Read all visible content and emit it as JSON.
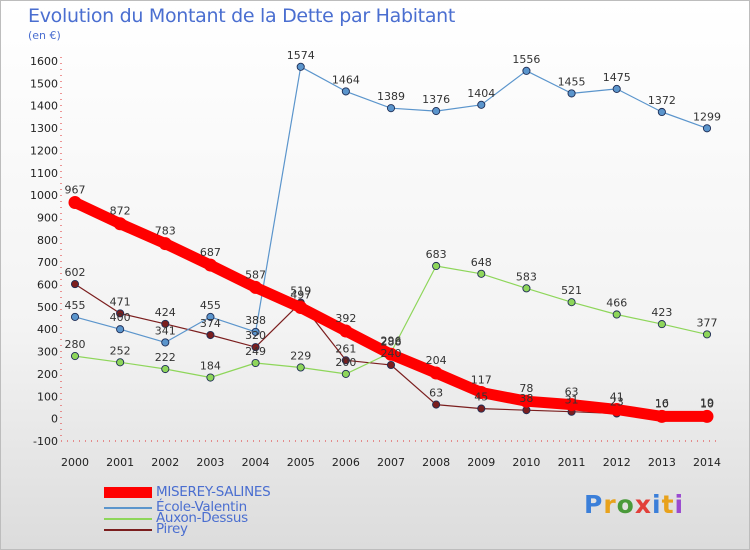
{
  "header": {
    "title": "Evolution du Montant de la Dette par Habitant",
    "unit": "(en €)"
  },
  "brand": {
    "logo_text": "Proxiti",
    "letter_colors": [
      "#3b7fd9",
      "#e8a21c",
      "#4a9a3a",
      "#e2403a",
      "#3b7fd9",
      "#e8a21c",
      "#9a4ad0"
    ]
  },
  "chart_data": {
    "type": "line",
    "title": "Evolution du Montant de la Dette par Habitant",
    "ylabel": "(en €)",
    "x": [
      "2000",
      "2001",
      "2002",
      "2003",
      "2004",
      "2005",
      "2006",
      "2007",
      "2008",
      "2009",
      "2010",
      "2011",
      "2012",
      "2013",
      "2014"
    ],
    "ylim": [
      -100,
      1600
    ],
    "yticks": [
      -100,
      0,
      100,
      200,
      300,
      400,
      500,
      600,
      700,
      800,
      900,
      1000,
      1100,
      1200,
      1300,
      1400,
      1500,
      1600
    ],
    "grid": false,
    "legend_position": "bottom-left",
    "series": [
      {
        "name": "Pirey",
        "color": "#7b1e1e",
        "values": [
          602,
          471,
          424,
          374,
          320,
          519,
          261,
          240,
          63,
          45,
          38,
          31,
          23,
          16,
          19
        ]
      },
      {
        "name": "Auxon-Dessus",
        "color": "#8ed65a",
        "values": [
          280,
          252,
          222,
          184,
          249,
          229,
          200,
          296,
          683,
          648,
          583,
          521,
          466,
          423,
          377
        ]
      },
      {
        "name": "École-Valentin",
        "color": "#5b95cc",
        "values": [
          455,
          400,
          341,
          455,
          388,
          1574,
          1464,
          1389,
          1376,
          1404,
          1556,
          1455,
          1475,
          1372,
          1299
        ]
      },
      {
        "name": "MISEREY-SALINES",
        "color": "#ff0000",
        "values": [
          967,
          872,
          783,
          687,
          587,
          497,
          392,
          288,
          204,
          117,
          78,
          63,
          41,
          10,
          10
        ]
      }
    ]
  }
}
